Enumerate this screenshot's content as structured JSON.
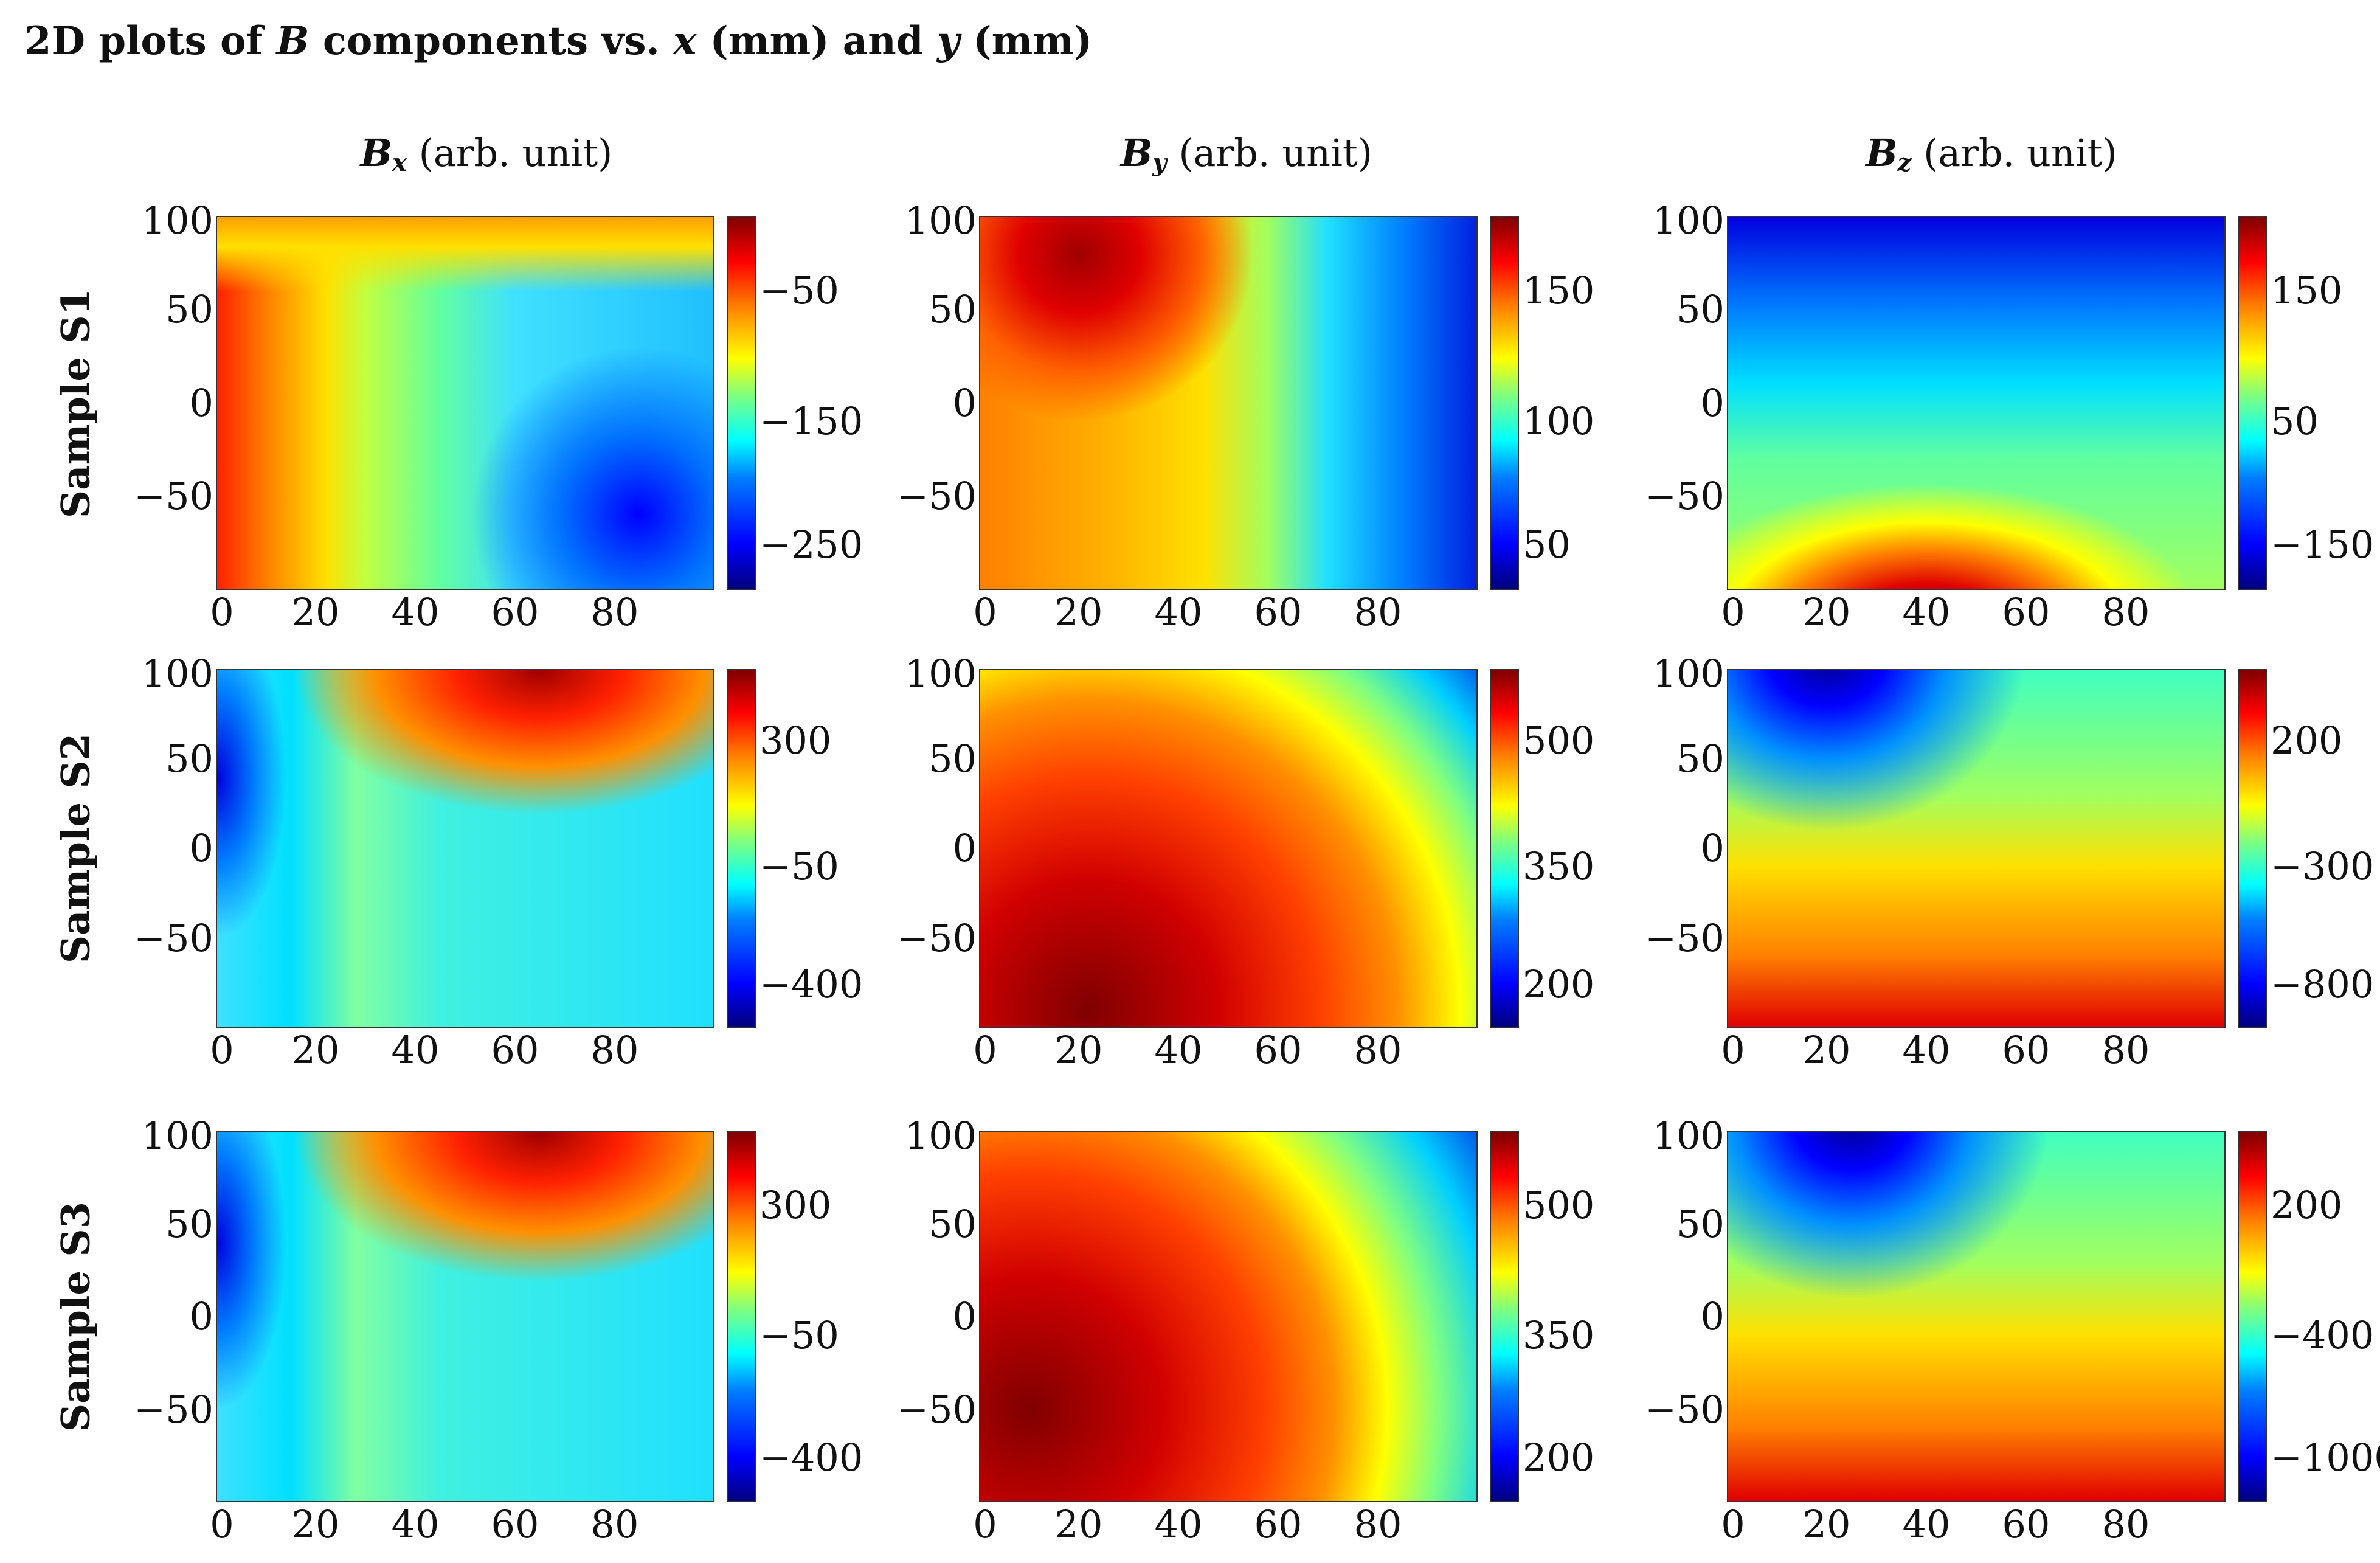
{
  "figure_title": {
    "prefix": "2D plots of ",
    "b": "B",
    "mid": " components vs. ",
    "x": "x",
    "mm1": " (mm) and ",
    "y": "y",
    "mm2": " (mm)"
  },
  "columns": [
    {
      "symbol": "B",
      "sub": "x",
      "unit": " (arb. unit)"
    },
    {
      "symbol": "B",
      "sub": "y",
      "unit": " (arb. unit)"
    },
    {
      "symbol": "B",
      "sub": "z",
      "unit": " (arb. unit)"
    }
  ],
  "rows": [
    "Sample S1",
    "Sample S2",
    "Sample S3"
  ],
  "colormap": "jet",
  "chart_data": [
    {
      "type": "heatmap",
      "sample": "Sample S1",
      "component": "Bx",
      "x_ticks": [
        "0",
        "20",
        "40",
        "60",
        "80"
      ],
      "y_ticks": [
        "100",
        "50",
        "0",
        "−50"
      ],
      "colorbar_ticks": [
        "−50",
        "−150",
        "−250"
      ],
      "colorbar_range": [
        -280,
        0
      ],
      "xlim": [
        0,
        100
      ],
      "ylim": [
        -100,
        100
      ],
      "pattern": "high (red) at x<20, low (blue) at lower right, upper band orange"
    },
    {
      "type": "heatmap",
      "sample": "Sample S1",
      "component": "By",
      "x_ticks": [
        "0",
        "20",
        "40",
        "60",
        "80"
      ],
      "y_ticks": [
        "100",
        "50",
        "0",
        "−50"
      ],
      "colorbar_ticks": [
        "150",
        "100",
        "50"
      ],
      "colorbar_range": [
        20,
        180
      ],
      "xlim": [
        0,
        100
      ],
      "ylim": [
        -100,
        100
      ],
      "pattern": "maximum near x=20, y=80; decreasing toward x=100"
    },
    {
      "type": "heatmap",
      "sample": "Sample S1",
      "component": "Bz",
      "x_ticks": [
        "0",
        "20",
        "40",
        "60",
        "80"
      ],
      "y_ticks": [
        "100",
        "50",
        "0",
        "−50"
      ],
      "colorbar_ticks": [
        "150",
        "50",
        "−150"
      ],
      "colorbar_range": [
        -180,
        170
      ],
      "xlim": [
        0,
        100
      ],
      "ylim": [
        -100,
        100
      ],
      "pattern": "minimum along top, maximum at bottom near x=30"
    },
    {
      "type": "heatmap",
      "sample": "Sample S2",
      "component": "Bx",
      "x_ticks": [
        "0",
        "20",
        "40",
        "60",
        "80"
      ],
      "y_ticks": [
        "100",
        "50",
        "0",
        "−50"
      ],
      "colorbar_ticks": [
        "300",
        "−50",
        "−400"
      ],
      "colorbar_range": [
        -420,
        360
      ],
      "xlim": [
        0,
        100
      ],
      "ylim": [
        -100,
        100
      ],
      "pattern": "maximum at upper right (x≈60,y≈100), minimum at upper left"
    },
    {
      "type": "heatmap",
      "sample": "Sample S2",
      "component": "By",
      "x_ticks": [
        "0",
        "20",
        "40",
        "60",
        "80"
      ],
      "y_ticks": [
        "100",
        "50",
        "0",
        "−50"
      ],
      "colorbar_ticks": [
        "500",
        "350",
        "200"
      ],
      "colorbar_range": [
        150,
        520
      ],
      "xlim": [
        0,
        100
      ],
      "ylim": [
        -100,
        100
      ],
      "pattern": "maximum at lower left (x≈20,y≈−80), minimum at upper right"
    },
    {
      "type": "heatmap",
      "sample": "Sample S2",
      "component": "Bz",
      "x_ticks": [
        "0",
        "20",
        "40",
        "60",
        "80"
      ],
      "y_ticks": [
        "100",
        "50",
        "0",
        "−50"
      ],
      "colorbar_ticks": [
        "200",
        "−300",
        "−800"
      ],
      "colorbar_range": [
        -1000,
        350
      ],
      "xlim": [
        0,
        100
      ],
      "ylim": [
        -100,
        100
      ],
      "pattern": "minimum at top (x≈20,y≈100), maximum along bottom"
    },
    {
      "type": "heatmap",
      "sample": "Sample S3",
      "component": "Bx",
      "x_ticks": [
        "0",
        "20",
        "40",
        "60",
        "80"
      ],
      "y_ticks": [
        "100",
        "50",
        "0",
        "−50"
      ],
      "colorbar_ticks": [
        "300",
        "−50",
        "−400"
      ],
      "colorbar_range": [
        -420,
        380
      ],
      "xlim": [
        0,
        100
      ],
      "ylim": [
        -100,
        100
      ],
      "pattern": "maximum at upper right (x≈60,y≈100), minimum at upper left"
    },
    {
      "type": "heatmap",
      "sample": "Sample S3",
      "component": "By",
      "x_ticks": [
        "0",
        "20",
        "40",
        "60",
        "80"
      ],
      "y_ticks": [
        "100",
        "50",
        "0",
        "−50"
      ],
      "colorbar_ticks": [
        "500",
        "350",
        "200"
      ],
      "colorbar_range": [
        150,
        530
      ],
      "xlim": [
        0,
        100
      ],
      "ylim": [
        -100,
        100
      ],
      "pattern": "maximum at left (x≈10,y≈−50), minimum at upper right"
    },
    {
      "type": "heatmap",
      "sample": "Sample S3",
      "component": "Bz",
      "x_ticks": [
        "0",
        "20",
        "40",
        "60",
        "80"
      ],
      "y_ticks": [
        "100",
        "50",
        "0",
        "−50"
      ],
      "colorbar_ticks": [
        "200",
        "−400",
        "−1000"
      ],
      "colorbar_range": [
        -1050,
        400
      ],
      "xlim": [
        0,
        100
      ],
      "ylim": [
        -100,
        100
      ],
      "pattern": "minimum at top (x≈25,y≈100), maximum along bottom"
    }
  ]
}
